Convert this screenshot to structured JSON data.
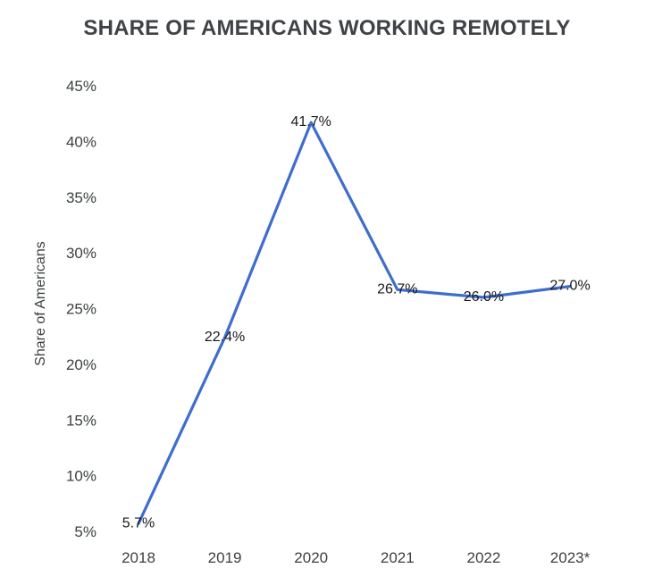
{
  "title": "SHARE OF AMERICANS WORKING REMOTELY",
  "chart_data": {
    "type": "line",
    "title": "SHARE OF AMERICANS WORKING REMOTELY",
    "categories": [
      "2018",
      "2019",
      "2020",
      "2021",
      "2022",
      "2023*"
    ],
    "series": [
      {
        "name": "Share of Americans",
        "values": [
          5.7,
          22.4,
          41.7,
          26.7,
          26.0,
          27.0
        ],
        "point_labels": [
          "5.7%",
          "22.4%",
          "41.7%",
          "26.7%",
          "26.0%",
          "27.0%"
        ]
      }
    ],
    "xlabel": "",
    "ylabel": "Share of Americans",
    "ylim": [
      5,
      45
    ],
    "ytick_values": [
      5,
      10,
      15,
      20,
      25,
      30,
      35,
      40,
      45
    ],
    "ytick_labels": [
      "5%",
      "10%",
      "15%",
      "20%",
      "25%",
      "30%",
      "35%",
      "40%",
      "45%"
    ],
    "grid": false,
    "legend_position": "none",
    "colors": {
      "line": "#3d6dce",
      "point_label": "#1a1a1a",
      "axis_text": "#3c4043",
      "title_text": "#3f4246",
      "background": "#ffffff"
    }
  }
}
